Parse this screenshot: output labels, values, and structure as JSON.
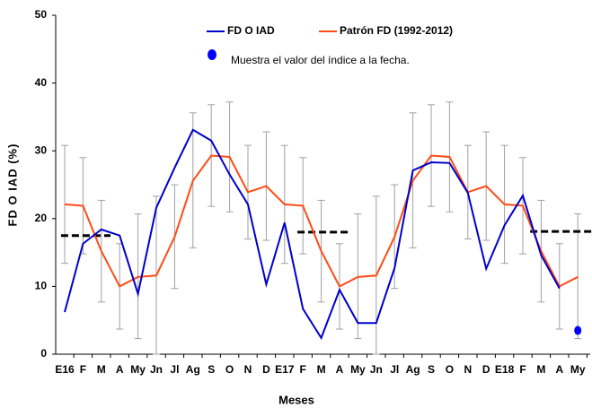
{
  "chart_data": {
    "type": "line",
    "xlabel": "Meses",
    "ylabel": "FD O IAD (%)",
    "categories": [
      "E16",
      "F",
      "M",
      "A",
      "My",
      "Jn",
      "Jl",
      "Ag",
      "S",
      "O",
      "N",
      "D",
      "E17",
      "F",
      "M",
      "A",
      "My",
      "Jn",
      "Jl",
      "Ag",
      "S",
      "O",
      "N",
      "D",
      "E18",
      "F",
      "M",
      "A",
      "My"
    ],
    "ylim": [
      0,
      50
    ],
    "yticks": [
      0,
      10,
      20,
      30,
      40,
      50
    ],
    "series": [
      {
        "name": "FD O IAD",
        "type": "line",
        "color": "#0000cc",
        "values": [
          6.2,
          16.3,
          18.4,
          17.5,
          8.9,
          21.6,
          27.5,
          33.1,
          31.5,
          26.5,
          22.1,
          10.3,
          19.4,
          6.7,
          2.4,
          9.5,
          4.6,
          4.6,
          12.7,
          27.1,
          28.3,
          28.2,
          23.8,
          12.6,
          19.0,
          23.4,
          14.6,
          9.7,
          null
        ]
      },
      {
        "name": "Patrón FD (1992-2012)",
        "type": "line",
        "color": "#ff4b14",
        "values": [
          22.1,
          21.9,
          15.2,
          10.0,
          11.4,
          11.6,
          17.3,
          25.6,
          29.3,
          29.1,
          23.9,
          24.8,
          22.1,
          21.9,
          15.2,
          10.0,
          11.4,
          11.6,
          17.3,
          25.6,
          29.3,
          29.1,
          23.9,
          24.8,
          22.1,
          21.9,
          15.2,
          10.0,
          11.4
        ]
      },
      {
        "name": "Muestra el valor del índice a la fecha.",
        "type": "marker",
        "color": "#0000ff",
        "values": [
          null,
          null,
          null,
          null,
          null,
          null,
          null,
          null,
          null,
          null,
          null,
          null,
          null,
          null,
          null,
          null,
          null,
          null,
          null,
          null,
          null,
          null,
          null,
          null,
          null,
          null,
          null,
          null,
          3.5
        ]
      }
    ],
    "error_bars": {
      "color": "#a0a0a0",
      "low": [
        13.4,
        14.8,
        7.7,
        3.7,
        2.3,
        0,
        9.7,
        15.7,
        21.8,
        21,
        17,
        16.8,
        13.4,
        14.8,
        7.7,
        3.7,
        2.3,
        0,
        9.7,
        15.7,
        21.8,
        21,
        17,
        16.8,
        13.4,
        14.8,
        7.7,
        3.7,
        2.3
      ],
      "high": [
        30.8,
        29,
        22.7,
        16.3,
        20.7,
        23.3,
        25,
        35.6,
        36.8,
        37.2,
        30.8,
        32.8,
        30.8,
        29,
        22.7,
        16.3,
        20.7,
        23.3,
        25,
        35.6,
        36.8,
        37.2,
        30.8,
        32.8,
        30.8,
        29,
        22.7,
        16.3,
        20.7
      ]
    },
    "reference_lines": [
      {
        "value": 17.5,
        "from": -0.2,
        "to": 2.5
      },
      {
        "value": 18.0,
        "from": 12.7,
        "to": 15.5
      },
      {
        "value": 18.1,
        "from": 25.4,
        "to": 28.8
      }
    ]
  }
}
